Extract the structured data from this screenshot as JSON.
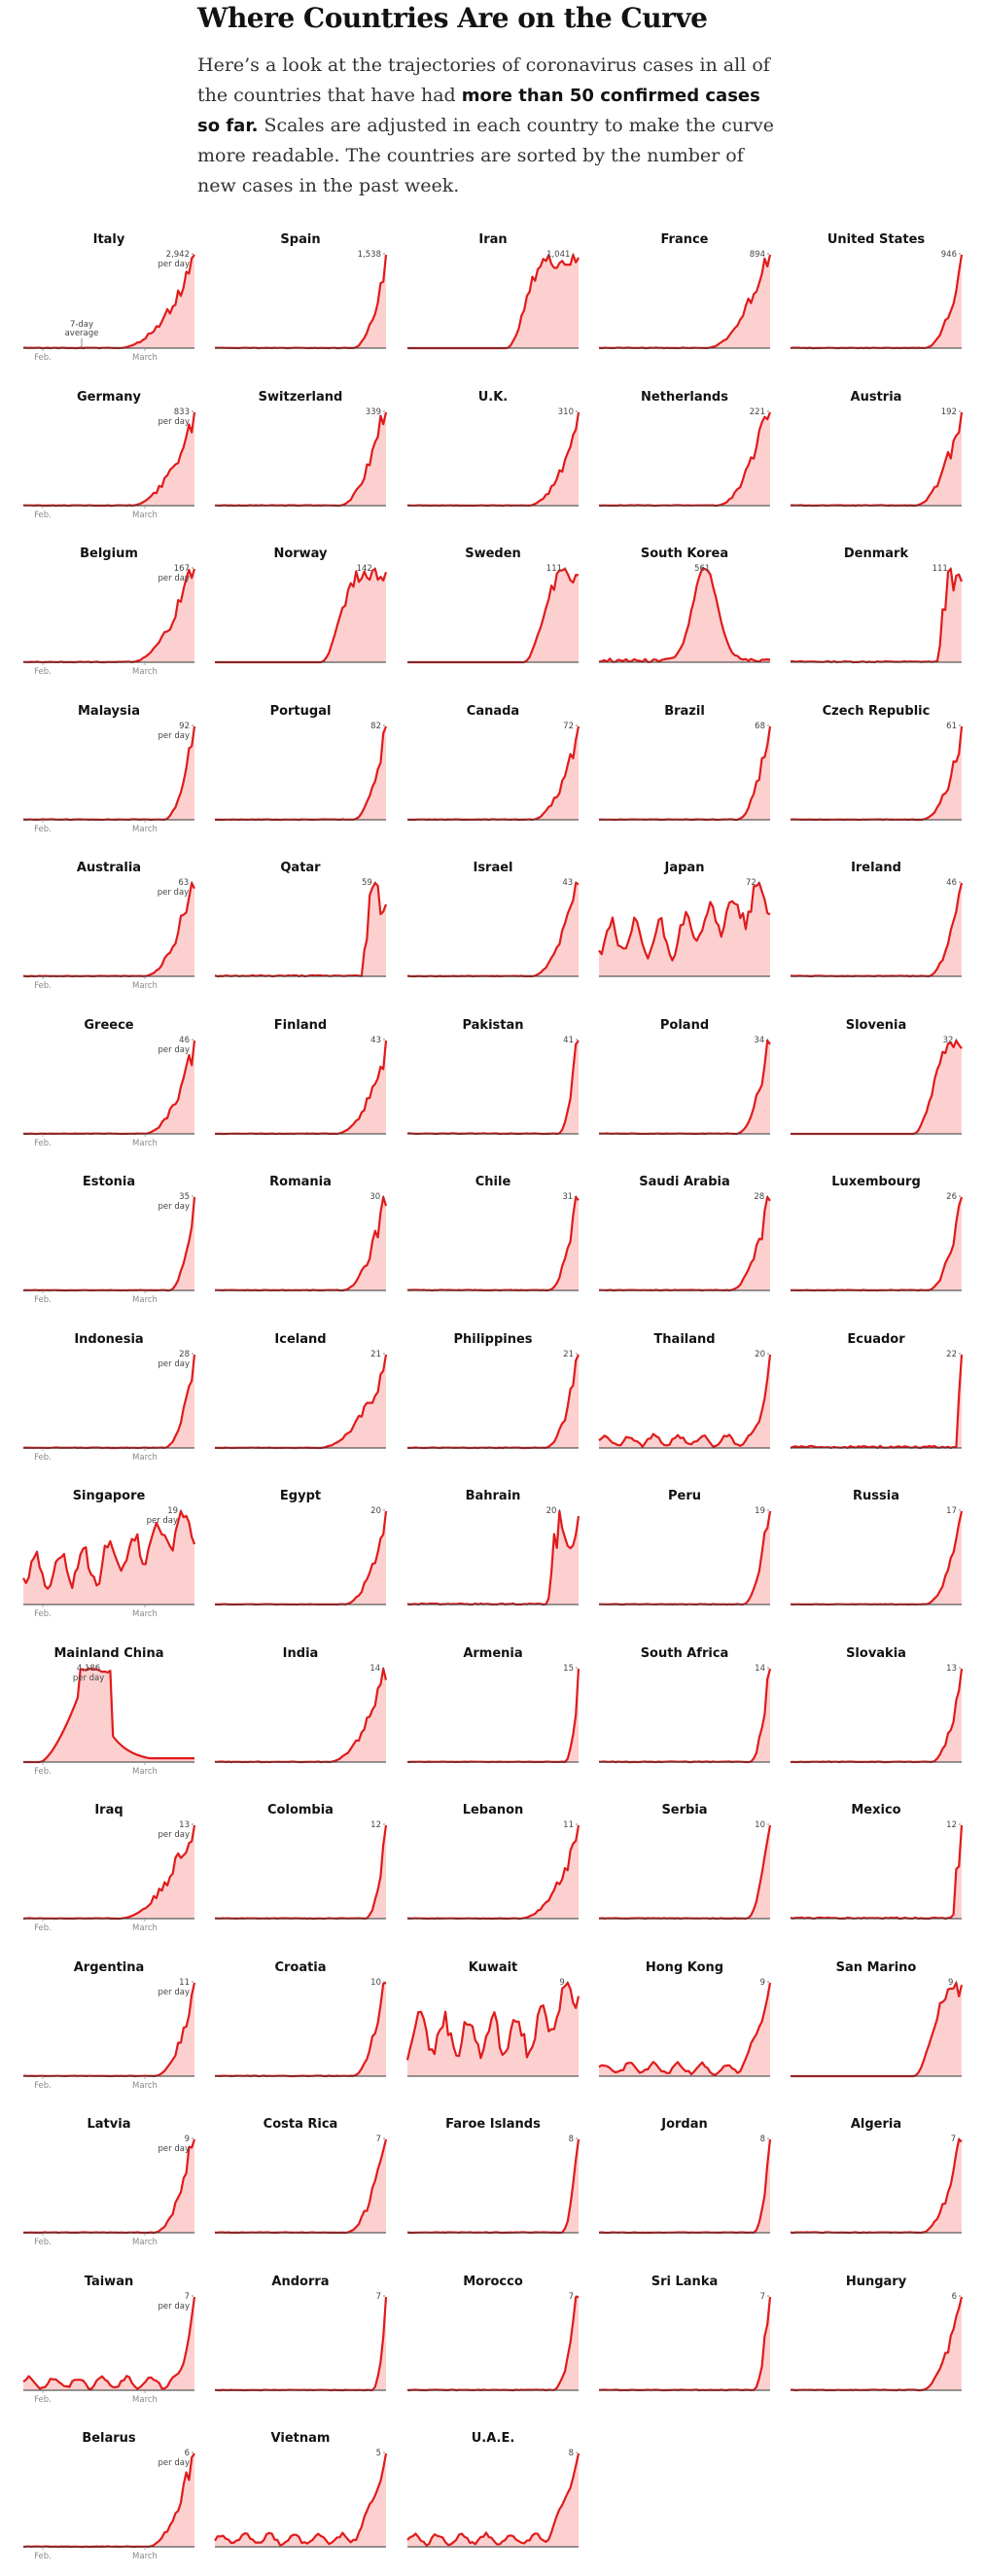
{
  "page": {
    "title": "Where Countries Are on the Curve",
    "intro_before": "Here’s a look at the trajectories of coronavirus cases in all of the countries that have had ",
    "intro_bold": "more than 50 confirmed cases so far.",
    "intro_after": " Scales are adjusted in each country to make the curve more readable. The countries are sorted by the number of new cases in the past week."
  },
  "colors": {
    "line": "#e01b1b",
    "fill": "#fdd0d0",
    "axis": "#333333",
    "tick": "#888888"
  },
  "labels": {
    "per_day": "per day",
    "avg_top": "7-day",
    "avg_bottom": "average",
    "feb": "Feb.",
    "march": "March"
  },
  "chart_data": {
    "type": "area",
    "title": "Where Countries Are on the Curve",
    "x_range": [
      "Jan. 22",
      "Mar. 24"
    ],
    "series": [
      {
        "name": "Italy",
        "label": "2,942",
        "peak": 2942,
        "shape": "exp",
        "p": [
          0.55
        ]
      },
      {
        "name": "Spain",
        "label": "1,538",
        "peak": 1538,
        "shape": "exp",
        "p": [
          0.8
        ]
      },
      {
        "name": "Iran",
        "label": "1,041",
        "peak": 1041,
        "shape": "plateau",
        "p": [
          0.58
        ]
      },
      {
        "name": "France",
        "label": "894",
        "peak": 894,
        "shape": "exp",
        "p": [
          0.62
        ]
      },
      {
        "name": "United States",
        "label": "946",
        "peak": 946,
        "shape": "exp",
        "p": [
          0.78
        ]
      },
      {
        "name": "Germany",
        "label": "833",
        "peak": 833,
        "shape": "exp",
        "p": [
          0.62
        ]
      },
      {
        "name": "Switzerland",
        "label": "339",
        "peak": 339,
        "shape": "exp",
        "p": [
          0.72
        ]
      },
      {
        "name": "U.K.",
        "label": "310",
        "peak": 310,
        "shape": "exp",
        "p": [
          0.7
        ]
      },
      {
        "name": "Netherlands",
        "label": "221",
        "peak": 221,
        "shape": "exp",
        "p": [
          0.68
        ]
      },
      {
        "name": "Austria",
        "label": "192",
        "peak": 192,
        "shape": "exp",
        "p": [
          0.72
        ]
      },
      {
        "name": "Belgium",
        "label": "167",
        "peak": 167,
        "shape": "exp",
        "p": [
          0.62
        ]
      },
      {
        "name": "Norway",
        "label": "142",
        "peak": 142,
        "shape": "plateau",
        "p": [
          0.62
        ]
      },
      {
        "name": "Sweden",
        "label": "111",
        "peak": 111,
        "shape": "plateau",
        "p": [
          0.68
        ]
      },
      {
        "name": "South Korea",
        "label": "561",
        "peak": 561,
        "shape": "hump",
        "p": [
          0.62,
          0.1
        ]
      },
      {
        "name": "Denmark",
        "label": "111",
        "peak": 111,
        "shape": "spike",
        "p": [
          0.86
        ]
      },
      {
        "name": "Malaysia",
        "label": "92",
        "peak": 92,
        "shape": "exp",
        "p": [
          0.82
        ]
      },
      {
        "name": "Portugal",
        "label": "82",
        "peak": 82,
        "shape": "exp",
        "p": [
          0.8
        ]
      },
      {
        "name": "Canada",
        "label": "72",
        "peak": 72,
        "shape": "exp",
        "p": [
          0.72
        ]
      },
      {
        "name": "Brazil",
        "label": "68",
        "peak": 68,
        "shape": "exp",
        "p": [
          0.8
        ]
      },
      {
        "name": "Czech Republic",
        "label": "61",
        "peak": 61,
        "shape": "exp",
        "p": [
          0.76
        ]
      },
      {
        "name": "Australia",
        "label": "63",
        "peak": 63,
        "shape": "exp",
        "p": [
          0.7
        ]
      },
      {
        "name": "Qatar",
        "label": "59",
        "peak": 59,
        "shape": "spike",
        "p": [
          0.86
        ]
      },
      {
        "name": "Israel",
        "label": "43",
        "peak": 43,
        "shape": "exp",
        "p": [
          0.72
        ]
      },
      {
        "name": "Japan",
        "label": "72",
        "peak": 72,
        "shape": "wave",
        "p": [
          0.42
        ]
      },
      {
        "name": "Ireland",
        "label": "46",
        "peak": 46,
        "shape": "exp",
        "p": [
          0.8
        ]
      },
      {
        "name": "Greece",
        "label": "46",
        "peak": 46,
        "shape": "exp",
        "p": [
          0.7
        ]
      },
      {
        "name": "Finland",
        "label": "43",
        "peak": 43,
        "shape": "exp",
        "p": [
          0.7
        ]
      },
      {
        "name": "Pakistan",
        "label": "41",
        "peak": 41,
        "shape": "exp",
        "p": [
          0.88
        ]
      },
      {
        "name": "Poland",
        "label": "34",
        "peak": 34,
        "shape": "exp",
        "p": [
          0.8
        ]
      },
      {
        "name": "Slovenia",
        "label": "32",
        "peak": 32,
        "shape": "plateau",
        "p": [
          0.72
        ]
      },
      {
        "name": "Estonia",
        "label": "35",
        "peak": 35,
        "shape": "exp",
        "p": [
          0.85
        ]
      },
      {
        "name": "Romania",
        "label": "30",
        "peak": 30,
        "shape": "exp",
        "p": [
          0.74
        ]
      },
      {
        "name": "Chile",
        "label": "31",
        "peak": 31,
        "shape": "exp",
        "p": [
          0.82
        ]
      },
      {
        "name": "Saudi Arabia",
        "label": "28",
        "peak": 28,
        "shape": "exp",
        "p": [
          0.76
        ]
      },
      {
        "name": "Luxembourg",
        "label": "26",
        "peak": 26,
        "shape": "exp",
        "p": [
          0.8
        ]
      },
      {
        "name": "Indonesia",
        "label": "28",
        "peak": 28,
        "shape": "exp",
        "p": [
          0.82
        ]
      },
      {
        "name": "Iceland",
        "label": "21",
        "peak": 21,
        "shape": "exp",
        "p": [
          0.6
        ]
      },
      {
        "name": "Philippines",
        "label": "21",
        "peak": 21,
        "shape": "exp",
        "p": [
          0.8
        ]
      },
      {
        "name": "Thailand",
        "label": "20",
        "peak": 20,
        "shape": "noisyexp",
        "p": [
          0.88
        ]
      },
      {
        "name": "Ecuador",
        "label": "22",
        "peak": 22,
        "shape": "spike",
        "p": [
          0.97
        ]
      },
      {
        "name": "Singapore",
        "label": "19",
        "peak": 19,
        "shape": "wave",
        "p": [
          0.4
        ]
      },
      {
        "name": "Egypt",
        "label": "20",
        "peak": 20,
        "shape": "exp",
        "p": [
          0.75
        ]
      },
      {
        "name": "Bahrain",
        "label": "20",
        "peak": 20,
        "shape": "spike",
        "p": [
          0.82
        ]
      },
      {
        "name": "Peru",
        "label": "19",
        "peak": 19,
        "shape": "exp",
        "p": [
          0.84
        ]
      },
      {
        "name": "Russia",
        "label": "17",
        "peak": 17,
        "shape": "exp",
        "p": [
          0.78
        ]
      },
      {
        "name": "Mainland China",
        "label": "4,186",
        "peak": 4186,
        "shape": "china",
        "p": [
          0.35
        ]
      },
      {
        "name": "India",
        "label": "14",
        "peak": 14,
        "shape": "exp",
        "p": [
          0.66
        ]
      },
      {
        "name": "Armenia",
        "label": "15",
        "peak": 15,
        "shape": "exp",
        "p": [
          0.92
        ]
      },
      {
        "name": "South Africa",
        "label": "14",
        "peak": 14,
        "shape": "exp",
        "p": [
          0.88
        ]
      },
      {
        "name": "Slovakia",
        "label": "13",
        "peak": 13,
        "shape": "exp",
        "p": [
          0.82
        ]
      },
      {
        "name": "Iraq",
        "label": "13",
        "peak": 13,
        "shape": "exp",
        "p": [
          0.55
        ]
      },
      {
        "name": "Colombia",
        "label": "12",
        "peak": 12,
        "shape": "exp",
        "p": [
          0.88
        ]
      },
      {
        "name": "Lebanon",
        "label": "11",
        "peak": 11,
        "shape": "exp",
        "p": [
          0.65
        ]
      },
      {
        "name": "Serbia",
        "label": "10",
        "peak": 10,
        "shape": "exp",
        "p": [
          0.86
        ]
      },
      {
        "name": "Mexico",
        "label": "12",
        "peak": 12,
        "shape": "spike",
        "p": [
          0.95
        ]
      },
      {
        "name": "Argentina",
        "label": "11",
        "peak": 11,
        "shape": "exp",
        "p": [
          0.76
        ]
      },
      {
        "name": "Croatia",
        "label": "10",
        "peak": 10,
        "shape": "exp",
        "p": [
          0.8
        ]
      },
      {
        "name": "Kuwait",
        "label": "9",
        "peak": 9,
        "shape": "wave",
        "p": [
          0.75
        ]
      },
      {
        "name": "Hong Kong",
        "label": "9",
        "peak": 9,
        "shape": "noisyexp",
        "p": [
          0.8
        ]
      },
      {
        "name": "San Marino",
        "label": "9",
        "peak": 9,
        "shape": "plateau",
        "p": [
          0.72
        ]
      },
      {
        "name": "Latvia",
        "label": "9",
        "peak": 9,
        "shape": "exp",
        "p": [
          0.76
        ]
      },
      {
        "name": "Costa Rica",
        "label": "7",
        "peak": 7,
        "shape": "exp",
        "p": [
          0.76
        ]
      },
      {
        "name": "Faroe Islands",
        "label": "8",
        "peak": 8,
        "shape": "exp",
        "p": [
          0.9
        ]
      },
      {
        "name": "Jordan",
        "label": "8",
        "peak": 8,
        "shape": "exp",
        "p": [
          0.9
        ]
      },
      {
        "name": "Algeria",
        "label": "7",
        "peak": 7,
        "shape": "exp",
        "p": [
          0.76
        ]
      },
      {
        "name": "Taiwan",
        "label": "7",
        "peak": 7,
        "shape": "noisyexp",
        "p": [
          0.88
        ]
      },
      {
        "name": "Andorra",
        "label": "7",
        "peak": 7,
        "shape": "exp",
        "p": [
          0.92
        ]
      },
      {
        "name": "Morocco",
        "label": "7",
        "peak": 7,
        "shape": "exp",
        "p": [
          0.85
        ]
      },
      {
        "name": "Sri Lanka",
        "label": "7",
        "peak": 7,
        "shape": "exp",
        "p": [
          0.9
        ]
      },
      {
        "name": "Hungary",
        "label": "6",
        "peak": 6,
        "shape": "exp",
        "p": [
          0.76
        ]
      },
      {
        "name": "Belarus",
        "label": "6",
        "peak": 6,
        "shape": "exp",
        "p": [
          0.72
        ]
      },
      {
        "name": "Vietnam",
        "label": "5",
        "peak": 5,
        "shape": "noisyexp",
        "p": [
          0.78
        ]
      },
      {
        "name": "U.A.E.",
        "label": "8",
        "peak": 8,
        "shape": "noisyexp",
        "p": [
          0.78
        ]
      }
    ]
  }
}
